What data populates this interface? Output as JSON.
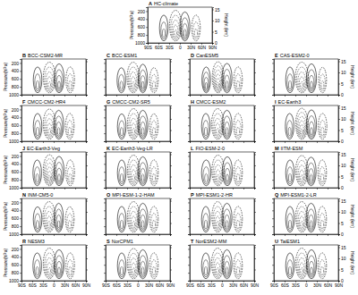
{
  "chart_data": {
    "type": "contour",
    "ylabel": "Pressure(hPa)",
    "y2label": "Height (km)",
    "xlim": [
      -90,
      90
    ],
    "xticks": [
      {
        "value": -90,
        "label": "90S"
      },
      {
        "value": -60,
        "label": "60S"
      },
      {
        "value": -30,
        "label": "30S"
      },
      {
        "value": 0,
        "label": "0"
      },
      {
        "value": 30,
        "label": "30N"
      },
      {
        "value": 60,
        "label": "60N"
      },
      {
        "value": 90,
        "label": "90N"
      }
    ],
    "ylim": [
      1000,
      100
    ],
    "yticks": [
      200,
      400,
      600,
      800,
      1000
    ],
    "y2lim": [
      0,
      16
    ],
    "y2ticks": [
      0,
      5,
      10,
      15
    ],
    "grid": false,
    "panels": [
      {
        "panel": "A",
        "title": "HC-climate",
        "cells": [
          {
            "lat": -45,
            "width": 12,
            "p_top": 300,
            "p_bottom": 950,
            "levels": 3,
            "sign": 1
          },
          {
            "lat": -12,
            "width": 17,
            "p_top": 180,
            "p_bottom": 950,
            "levels": 5,
            "sign": -1
          },
          {
            "lat": 14,
            "width": 14,
            "p_top": 220,
            "p_bottom": 950,
            "levels": 4,
            "sign": 1
          },
          {
            "lat": 45,
            "width": 12,
            "p_top": 300,
            "p_bottom": 950,
            "levels": 3,
            "sign": -1
          }
        ]
      },
      {
        "panel": "B",
        "title": "BCC-CSM2-MR",
        "cells": [
          {
            "lat": -45,
            "width": 12,
            "p_top": 300,
            "p_bottom": 950,
            "levels": 3,
            "sign": 1
          },
          {
            "lat": -12,
            "width": 17,
            "p_top": 180,
            "p_bottom": 950,
            "levels": 5,
            "sign": -1
          },
          {
            "lat": 15,
            "width": 14,
            "p_top": 220,
            "p_bottom": 950,
            "levels": 4,
            "sign": 1
          },
          {
            "lat": 46,
            "width": 12,
            "p_top": 300,
            "p_bottom": 950,
            "levels": 3,
            "sign": -1
          }
        ]
      },
      {
        "panel": "C",
        "title": "BCC-ESM1",
        "cells": [
          {
            "lat": -46,
            "width": 12,
            "p_top": 320,
            "p_bottom": 950,
            "levels": 3,
            "sign": 1
          },
          {
            "lat": -13,
            "width": 17,
            "p_top": 180,
            "p_bottom": 950,
            "levels": 5,
            "sign": -1
          },
          {
            "lat": 14,
            "width": 13,
            "p_top": 230,
            "p_bottom": 950,
            "levels": 4,
            "sign": 1
          },
          {
            "lat": 45,
            "width": 12,
            "p_top": 320,
            "p_bottom": 950,
            "levels": 3,
            "sign": -1
          }
        ]
      },
      {
        "panel": "D",
        "title": "CanESM5",
        "cells": [
          {
            "lat": -44,
            "width": 12,
            "p_top": 300,
            "p_bottom": 950,
            "levels": 4,
            "sign": 1
          },
          {
            "lat": -11,
            "width": 16,
            "p_top": 170,
            "p_bottom": 950,
            "levels": 6,
            "sign": -1
          },
          {
            "lat": 14,
            "width": 14,
            "p_top": 210,
            "p_bottom": 950,
            "levels": 4,
            "sign": 1
          },
          {
            "lat": 45,
            "width": 12,
            "p_top": 300,
            "p_bottom": 950,
            "levels": 3,
            "sign": -1
          }
        ]
      },
      {
        "panel": "E",
        "title": "CAS-ESM2-0",
        "cells": [
          {
            "lat": -45,
            "width": 12,
            "p_top": 300,
            "p_bottom": 950,
            "levels": 3,
            "sign": 1
          },
          {
            "lat": -12,
            "width": 18,
            "p_top": 180,
            "p_bottom": 950,
            "levels": 5,
            "sign": -1
          },
          {
            "lat": 15,
            "width": 14,
            "p_top": 220,
            "p_bottom": 950,
            "levels": 4,
            "sign": 1
          },
          {
            "lat": 46,
            "width": 11,
            "p_top": 310,
            "p_bottom": 950,
            "levels": 3,
            "sign": -1
          }
        ]
      },
      {
        "panel": "F",
        "title": "CMCC-CM2-HR4",
        "cells": [
          {
            "lat": -45,
            "width": 12,
            "p_top": 300,
            "p_bottom": 950,
            "levels": 3,
            "sign": 1
          },
          {
            "lat": -12,
            "width": 17,
            "p_top": 190,
            "p_bottom": 950,
            "levels": 5,
            "sign": -1
          },
          {
            "lat": 14,
            "width": 14,
            "p_top": 220,
            "p_bottom": 950,
            "levels": 4,
            "sign": 1
          },
          {
            "lat": 45,
            "width": 12,
            "p_top": 300,
            "p_bottom": 950,
            "levels": 3,
            "sign": -1
          }
        ]
      },
      {
        "panel": "G",
        "title": "CMCC-CM2-SR5",
        "cells": [
          {
            "lat": -45,
            "width": 12,
            "p_top": 310,
            "p_bottom": 950,
            "levels": 3,
            "sign": 1
          },
          {
            "lat": -12,
            "width": 17,
            "p_top": 180,
            "p_bottom": 950,
            "levels": 5,
            "sign": -1
          },
          {
            "lat": 14,
            "width": 14,
            "p_top": 220,
            "p_bottom": 950,
            "levels": 4,
            "sign": 1
          },
          {
            "lat": 45,
            "width": 12,
            "p_top": 310,
            "p_bottom": 950,
            "levels": 3,
            "sign": -1
          }
        ]
      },
      {
        "panel": "H",
        "title": "CMCC-ESM2",
        "cells": [
          {
            "lat": -45,
            "width": 12,
            "p_top": 300,
            "p_bottom": 950,
            "levels": 3,
            "sign": 1
          },
          {
            "lat": -12,
            "width": 17,
            "p_top": 180,
            "p_bottom": 950,
            "levels": 5,
            "sign": -1
          },
          {
            "lat": 14,
            "width": 14,
            "p_top": 220,
            "p_bottom": 950,
            "levels": 4,
            "sign": 1
          },
          {
            "lat": 45,
            "width": 12,
            "p_top": 300,
            "p_bottom": 950,
            "levels": 3,
            "sign": -1
          }
        ]
      },
      {
        "panel": "I",
        "title": "EC-Earth3",
        "cells": [
          {
            "lat": -46,
            "width": 12,
            "p_top": 300,
            "p_bottom": 950,
            "levels": 3,
            "sign": 1
          },
          {
            "lat": -12,
            "width": 17,
            "p_top": 170,
            "p_bottom": 950,
            "levels": 6,
            "sign": -1
          },
          {
            "lat": 15,
            "width": 14,
            "p_top": 210,
            "p_bottom": 950,
            "levels": 4,
            "sign": 1
          },
          {
            "lat": 46,
            "width": 12,
            "p_top": 300,
            "p_bottom": 950,
            "levels": 3,
            "sign": -1
          }
        ]
      },
      {
        "panel": "J",
        "title": "EC-Earth3-Veg",
        "cells": [
          {
            "lat": -46,
            "width": 12,
            "p_top": 300,
            "p_bottom": 950,
            "levels": 3,
            "sign": 1
          },
          {
            "lat": -12,
            "width": 17,
            "p_top": 170,
            "p_bottom": 950,
            "levels": 6,
            "sign": -1
          },
          {
            "lat": 15,
            "width": 14,
            "p_top": 210,
            "p_bottom": 950,
            "levels": 4,
            "sign": 1
          },
          {
            "lat": 46,
            "width": 12,
            "p_top": 300,
            "p_bottom": 950,
            "levels": 3,
            "sign": -1
          }
        ]
      },
      {
        "panel": "K",
        "title": "EC-Earth3-Veg-LR",
        "cells": [
          {
            "lat": -45,
            "width": 12,
            "p_top": 300,
            "p_bottom": 950,
            "levels": 3,
            "sign": 1
          },
          {
            "lat": -12,
            "width": 17,
            "p_top": 180,
            "p_bottom": 950,
            "levels": 5,
            "sign": -1
          },
          {
            "lat": 14,
            "width": 14,
            "p_top": 220,
            "p_bottom": 950,
            "levels": 4,
            "sign": 1
          },
          {
            "lat": 45,
            "width": 12,
            "p_top": 300,
            "p_bottom": 950,
            "levels": 3,
            "sign": -1
          }
        ]
      },
      {
        "panel": "L",
        "title": "FIO-ESM-2-0",
        "cells": [
          {
            "lat": -44,
            "width": 13,
            "p_top": 300,
            "p_bottom": 950,
            "levels": 3,
            "sign": 1
          },
          {
            "lat": -11,
            "width": 17,
            "p_top": 180,
            "p_bottom": 950,
            "levels": 5,
            "sign": -1
          },
          {
            "lat": 15,
            "width": 14,
            "p_top": 220,
            "p_bottom": 950,
            "levels": 4,
            "sign": 1
          },
          {
            "lat": 45,
            "width": 12,
            "p_top": 300,
            "p_bottom": 950,
            "levels": 3,
            "sign": -1
          }
        ]
      },
      {
        "panel": "M",
        "title": "IITM-ESM",
        "cells": [
          {
            "lat": -45,
            "width": 12,
            "p_top": 300,
            "p_bottom": 950,
            "levels": 3,
            "sign": 1
          },
          {
            "lat": -12,
            "width": 17,
            "p_top": 190,
            "p_bottom": 950,
            "levels": 5,
            "sign": -1
          },
          {
            "lat": 14,
            "width": 14,
            "p_top": 230,
            "p_bottom": 950,
            "levels": 4,
            "sign": 1
          },
          {
            "lat": 45,
            "width": 12,
            "p_top": 300,
            "p_bottom": 950,
            "levels": 3,
            "sign": -1
          }
        ]
      },
      {
        "panel": "N",
        "title": "INM-CM5-0",
        "cells": [
          {
            "lat": -45,
            "width": 12,
            "p_top": 310,
            "p_bottom": 950,
            "levels": 3,
            "sign": 1
          },
          {
            "lat": -13,
            "width": 17,
            "p_top": 180,
            "p_bottom": 950,
            "levels": 5,
            "sign": -1
          },
          {
            "lat": 14,
            "width": 13,
            "p_top": 220,
            "p_bottom": 950,
            "levels": 4,
            "sign": 1
          },
          {
            "lat": 45,
            "width": 12,
            "p_top": 310,
            "p_bottom": 950,
            "levels": 3,
            "sign": -1
          }
        ]
      },
      {
        "panel": "O",
        "title": "MPI-ESM-1-2-HAM",
        "cells": [
          {
            "lat": -45,
            "width": 12,
            "p_top": 300,
            "p_bottom": 950,
            "levels": 3,
            "sign": 1
          },
          {
            "lat": -12,
            "width": 17,
            "p_top": 180,
            "p_bottom": 950,
            "levels": 5,
            "sign": -1
          },
          {
            "lat": 14,
            "width": 14,
            "p_top": 220,
            "p_bottom": 950,
            "levels": 4,
            "sign": 1
          },
          {
            "lat": 45,
            "width": 12,
            "p_top": 300,
            "p_bottom": 950,
            "levels": 3,
            "sign": -1
          }
        ]
      },
      {
        "panel": "P",
        "title": "MPI-ESM1-2-HR",
        "cells": [
          {
            "lat": -45,
            "width": 12,
            "p_top": 300,
            "p_bottom": 950,
            "levels": 3,
            "sign": 1
          },
          {
            "lat": -12,
            "width": 16,
            "p_top": 180,
            "p_bottom": 950,
            "levels": 5,
            "sign": -1
          },
          {
            "lat": 14,
            "width": 14,
            "p_top": 220,
            "p_bottom": 950,
            "levels": 4,
            "sign": 1
          },
          {
            "lat": 45,
            "width": 12,
            "p_top": 300,
            "p_bottom": 950,
            "levels": 3,
            "sign": -1
          }
        ]
      },
      {
        "panel": "Q",
        "title": "MPI-ESM1-2-LR",
        "cells": [
          {
            "lat": -45,
            "width": 12,
            "p_top": 300,
            "p_bottom": 950,
            "levels": 3,
            "sign": 1
          },
          {
            "lat": -12,
            "width": 17,
            "p_top": 180,
            "p_bottom": 950,
            "levels": 5,
            "sign": -1
          },
          {
            "lat": 14,
            "width": 14,
            "p_top": 220,
            "p_bottom": 950,
            "levels": 4,
            "sign": 1
          },
          {
            "lat": 45,
            "width": 12,
            "p_top": 300,
            "p_bottom": 950,
            "levels": 3,
            "sign": -1
          }
        ]
      },
      {
        "panel": "R",
        "title": "NESM3",
        "cells": [
          {
            "lat": -46,
            "width": 12,
            "p_top": 300,
            "p_bottom": 950,
            "levels": 3,
            "sign": 1
          },
          {
            "lat": -12,
            "width": 17,
            "p_top": 180,
            "p_bottom": 950,
            "levels": 5,
            "sign": -1
          },
          {
            "lat": 15,
            "width": 14,
            "p_top": 220,
            "p_bottom": 950,
            "levels": 4,
            "sign": 1
          },
          {
            "lat": 46,
            "width": 12,
            "p_top": 300,
            "p_bottom": 950,
            "levels": 3,
            "sign": -1
          }
        ]
      },
      {
        "panel": "S",
        "title": "NorCPM1",
        "cells": [
          {
            "lat": -45,
            "width": 12,
            "p_top": 300,
            "p_bottom": 950,
            "levels": 3,
            "sign": 1
          },
          {
            "lat": -12,
            "width": 17,
            "p_top": 190,
            "p_bottom": 950,
            "levels": 5,
            "sign": -1
          },
          {
            "lat": 14,
            "width": 14,
            "p_top": 220,
            "p_bottom": 950,
            "levels": 4,
            "sign": 1
          },
          {
            "lat": 45,
            "width": 12,
            "p_top": 300,
            "p_bottom": 950,
            "levels": 3,
            "sign": -1
          }
        ]
      },
      {
        "panel": "T",
        "title": "NorESM2-MM",
        "cells": [
          {
            "lat": -45,
            "width": 12,
            "p_top": 300,
            "p_bottom": 950,
            "levels": 3,
            "sign": 1
          },
          {
            "lat": -12,
            "width": 17,
            "p_top": 180,
            "p_bottom": 950,
            "levels": 5,
            "sign": -1
          },
          {
            "lat": 14,
            "width": 14,
            "p_top": 220,
            "p_bottom": 950,
            "levels": 4,
            "sign": 1
          },
          {
            "lat": 45,
            "width": 12,
            "p_top": 300,
            "p_bottom": 950,
            "levels": 3,
            "sign": -1
          }
        ]
      },
      {
        "panel": "U",
        "title": "TaiESM1",
        "cells": [
          {
            "lat": -45,
            "width": 12,
            "p_top": 300,
            "p_bottom": 950,
            "levels": 3,
            "sign": 1
          },
          {
            "lat": -12,
            "width": 17,
            "p_top": 180,
            "p_bottom": 950,
            "levels": 5,
            "sign": -1
          },
          {
            "lat": 15,
            "width": 14,
            "p_top": 220,
            "p_bottom": 950,
            "levels": 4,
            "sign": 1
          },
          {
            "lat": 45,
            "width": 12,
            "p_top": 300,
            "p_bottom": 950,
            "levels": 3,
            "sign": -1
          }
        ]
      }
    ]
  }
}
